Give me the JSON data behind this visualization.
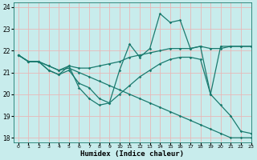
{
  "xlabel": "Humidex (Indice chaleur)",
  "ylabel": "",
  "bg_color": "#c8ecec",
  "grid_color": "#e8b8b8",
  "line_color": "#1a7a6e",
  "xlim": [
    -0.5,
    23
  ],
  "ylim": [
    17.8,
    24.2
  ],
  "yticks": [
    18,
    19,
    20,
    21,
    22,
    23,
    24
  ],
  "xticks": [
    0,
    1,
    2,
    3,
    4,
    5,
    6,
    7,
    8,
    9,
    10,
    11,
    12,
    13,
    14,
    15,
    16,
    17,
    18,
    19,
    20,
    21,
    22,
    23
  ],
  "series": [
    {
      "x": [
        0,
        1,
        2,
        3,
        4,
        5,
        6,
        7,
        8,
        9,
        10,
        11,
        12,
        13,
        14,
        15,
        16,
        17,
        18,
        19,
        20,
        21,
        22,
        23
      ],
      "y": [
        21.8,
        21.5,
        21.5,
        21.1,
        20.9,
        21.3,
        20.3,
        19.8,
        19.5,
        19.6,
        21.1,
        22.3,
        21.7,
        22.1,
        23.7,
        23.3,
        23.4,
        22.1,
        22.2,
        20.0,
        22.2,
        22.2,
        22.2,
        22.2
      ]
    },
    {
      "x": [
        0,
        1,
        2,
        3,
        4,
        5,
        6,
        7,
        8,
        9,
        10,
        11,
        12,
        13,
        14,
        15,
        16,
        17,
        18,
        19,
        20,
        21,
        22,
        23
      ],
      "y": [
        21.8,
        21.5,
        21.5,
        21.1,
        20.9,
        21.1,
        20.5,
        20.3,
        19.8,
        19.6,
        20.0,
        20.4,
        20.8,
        21.1,
        21.4,
        21.6,
        21.7,
        21.7,
        21.6,
        20.0,
        19.5,
        19.0,
        18.3,
        18.2
      ]
    },
    {
      "x": [
        0,
        1,
        2,
        3,
        4,
        5,
        6,
        7,
        8,
        9,
        10,
        11,
        12,
        13,
        14,
        15,
        16,
        17,
        18,
        19,
        20,
        21,
        22,
        23
      ],
      "y": [
        21.8,
        21.5,
        21.5,
        21.3,
        21.1,
        21.3,
        21.2,
        21.2,
        21.3,
        21.4,
        21.5,
        21.7,
        21.8,
        21.9,
        22.0,
        22.1,
        22.1,
        22.1,
        22.2,
        22.1,
        22.1,
        22.2,
        22.2,
        22.2
      ]
    },
    {
      "x": [
        0,
        1,
        2,
        3,
        4,
        5,
        6,
        7,
        8,
        9,
        10,
        11,
        12,
        13,
        14,
        15,
        16,
        17,
        18,
        19,
        20,
        21,
        22,
        23
      ],
      "y": [
        21.8,
        21.5,
        21.5,
        21.3,
        21.1,
        21.2,
        21.0,
        20.8,
        20.6,
        20.4,
        20.2,
        20.0,
        19.8,
        19.6,
        19.4,
        19.2,
        19.0,
        18.8,
        18.6,
        18.4,
        18.2,
        18.0,
        18.0,
        18.0
      ]
    }
  ]
}
